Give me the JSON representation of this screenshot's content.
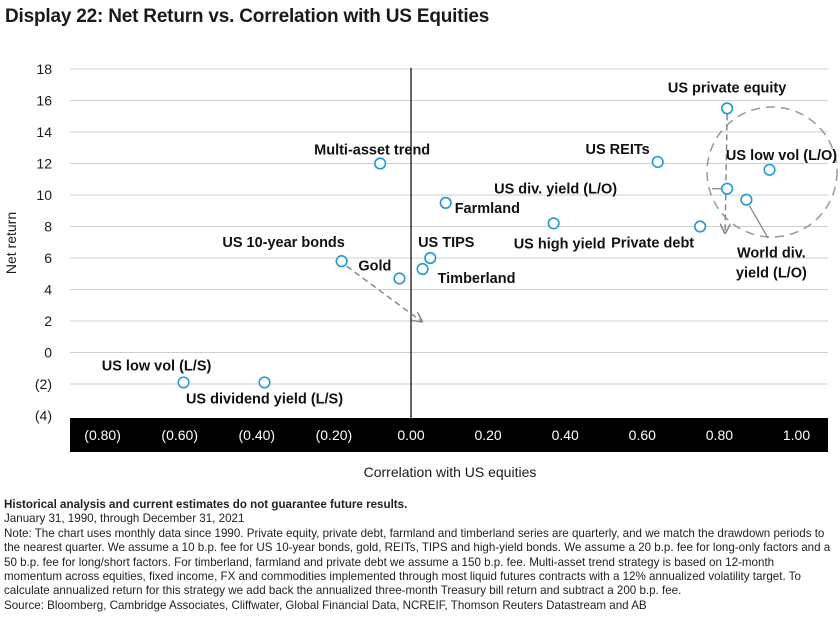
{
  "title": "Display 22: Net Return vs. Correlation with US Equities",
  "chart_data": {
    "type": "scatter",
    "xlabel": "Correlation with US equities",
    "ylabel": "Net return",
    "xlim": [
      -0.9,
      1.06
    ],
    "ylim": [
      -4,
      18
    ],
    "xticks": [
      "(0.80)",
      "(0.60)",
      "(0.40)",
      "(0.20)",
      "0.00",
      "0.20",
      "0.40",
      "0.60",
      "0.80",
      "1.00"
    ],
    "xtick_values": [
      -0.8,
      -0.6,
      -0.4,
      -0.2,
      0,
      0.2,
      0.4,
      0.6,
      0.8,
      1.0
    ],
    "yticks": [
      "18",
      "16",
      "14",
      "12",
      "10",
      "8",
      "6",
      "4",
      "2",
      "0",
      "(2)",
      "(4)"
    ],
    "ytick_values": [
      18,
      16,
      14,
      12,
      10,
      8,
      6,
      4,
      2,
      0,
      -2,
      -4
    ],
    "grid": true,
    "marker_color": "#1e9ad6",
    "points": [
      {
        "label": "US private equity",
        "x": 0.82,
        "y": 15.5
      },
      {
        "label": "US REITs",
        "x": 0.64,
        "y": 12.1
      },
      {
        "label": "US low vol (L/O)",
        "x": 0.93,
        "y": 11.6
      },
      {
        "label": "US div. yield (L/O)",
        "x": 0.82,
        "y": 10.4
      },
      {
        "label": "World div. yield (L/O)",
        "x": 0.87,
        "y": 9.7
      },
      {
        "label": "Private debt",
        "x": 0.75,
        "y": 8.0
      },
      {
        "label": "US high yield",
        "x": 0.37,
        "y": 8.2
      },
      {
        "label": "Farmland",
        "x": 0.09,
        "y": 9.5
      },
      {
        "label": "Multi-asset trend",
        "x": -0.08,
        "y": 12.0
      },
      {
        "label": "US TIPS",
        "x": 0.05,
        "y": 6.0
      },
      {
        "label": "Timberland",
        "x": 0.03,
        "y": 5.3
      },
      {
        "label": "Gold",
        "x": -0.03,
        "y": 4.7
      },
      {
        "label": "US 10-year bonds",
        "x": -0.18,
        "y": 5.8
      },
      {
        "label": "US low vol (L/S)",
        "x": -0.59,
        "y": -1.9
      },
      {
        "label": "US dividend yield (L/S)",
        "x": -0.38,
        "y": -1.9
      }
    ]
  },
  "notes": {
    "disclaimer": "Historical analysis and current estimates do not guarantee future results.",
    "period": "January 31, 1990, through December 31, 2021",
    "note": "Note: The chart uses monthly data since 1990. Private equity, private debt, farmland and timberland series are quarterly, and we match the drawdown periods to the nearest quarter.  We assume a 10 b.p. fee for US 10-year bonds, gold, REITs, TIPS and high-yield bonds. We assume a 20 b.p. fee for long-only factors and a 50 b.p. fee for long/short factors. For timberland, farmland and private debt we assume a 150 b.p. fee. Multi-asset trend strategy is based on 12-month momentum across equities, fixed income, FX and commodities implemented through most liquid futures contracts with a 12% annualized volatility target. To calculate annualized return for this strategy we add back the annualized three-month Treasury bill return and subtract a 200 b.p. fee.",
    "source": "Source: Bloomberg, Cambridge Associates, Cliffwater, Global Financial Data, NCREIF, Thomson Reuters Datastream and AB"
  }
}
